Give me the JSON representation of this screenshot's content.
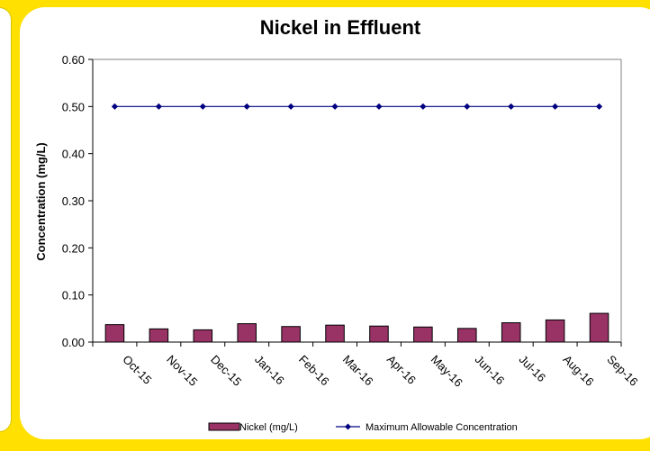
{
  "chart_data": {
    "type": "bar",
    "title": "Nickel in Effluent",
    "ylabel": "Concentration (mg/L)",
    "xlabel": "",
    "ylim": [
      0,
      0.6
    ],
    "yticks": [
      "0.00",
      "0.10",
      "0.20",
      "0.30",
      "0.40",
      "0.50",
      "0.60"
    ],
    "categories": [
      "Oct-15",
      "Nov-15",
      "Dec-15",
      "Jan-16",
      "Feb-16",
      "Mar-16",
      "Apr-16",
      "May-16",
      "Jun-16",
      "Jul-16",
      "Aug-16",
      "Sep-16"
    ],
    "series": [
      {
        "name": "Nickel (mg/L)",
        "type": "bar",
        "color": "#993366",
        "values": [
          0.037,
          0.028,
          0.026,
          0.039,
          0.033,
          0.036,
          0.034,
          0.032,
          0.029,
          0.041,
          0.047,
          0.061
        ]
      },
      {
        "name": "Maximum Allowable Concentration",
        "type": "line",
        "color": "#000080",
        "values": [
          0.5,
          0.5,
          0.5,
          0.5,
          0.5,
          0.5,
          0.5,
          0.5,
          0.5,
          0.5,
          0.5,
          0.5
        ]
      }
    ],
    "grid": false,
    "legend_position": "bottom"
  }
}
